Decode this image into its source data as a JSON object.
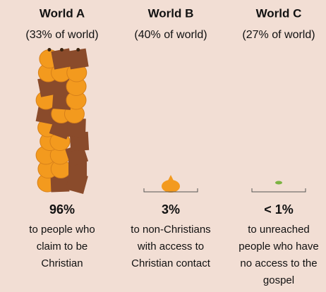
{
  "chart_data": {
    "type": "pictograph",
    "categories": [
      "World A",
      "World B",
      "World C"
    ],
    "subtitles": [
      "(33% of world)",
      "(40% of world)",
      "(27% of world)"
    ],
    "values": [
      96,
      3,
      0.5
    ],
    "value_labels": [
      "96%",
      "3%",
      "< 1%"
    ],
    "descriptions": [
      [
        "to people who",
        "claim to be",
        "Christian"
      ],
      [
        "to non-Christians",
        "with access to",
        "Christian contact"
      ],
      [
        "to unreached",
        "people who have",
        "no access to the",
        "gospel"
      ]
    ],
    "colors": [
      "#f39a1e",
      "#f39a1e",
      "#7cb342"
    ]
  }
}
